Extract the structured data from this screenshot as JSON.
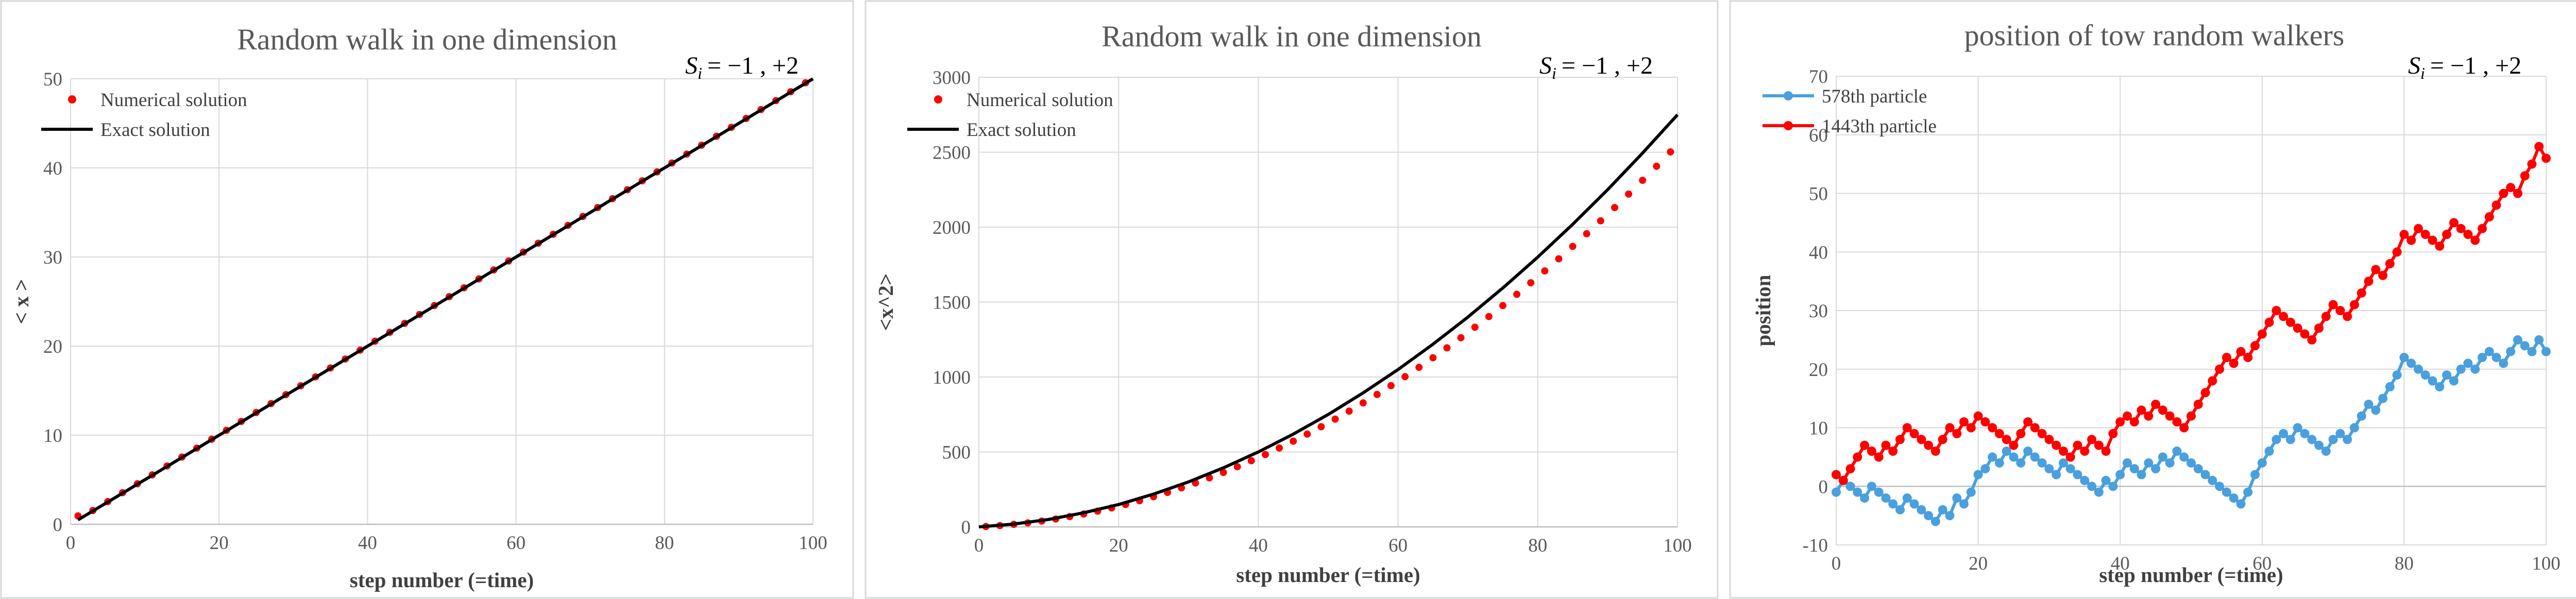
{
  "chart_data": [
    {
      "type": "scatter",
      "title": "Random walk in one dimension",
      "annotation": "Si = −1 , +2",
      "annotation_base": "S",
      "annotation_sub": "i",
      "annotation_rest": "= −1 , +2",
      "xlabel": "step number (=time)",
      "ylabel": "< x >",
      "xlim": [
        0,
        100
      ],
      "ylim": [
        0,
        50
      ],
      "xticks": [
        "0",
        "20",
        "40",
        "60",
        "80",
        "100"
      ],
      "yticks": [
        "0",
        "10",
        "20",
        "30",
        "40",
        "50"
      ],
      "grid": true,
      "legend_position": "top-left",
      "series": [
        {
          "name": "Numerical solution",
          "kind": "markers",
          "color": "#ff0000",
          "x": [
            1,
            3,
            5,
            7,
            9,
            11,
            13,
            15,
            17,
            19,
            21,
            23,
            25,
            27,
            29,
            31,
            33,
            35,
            37,
            39,
            41,
            43,
            45,
            47,
            49,
            51,
            53,
            55,
            57,
            59,
            61,
            63,
            65,
            67,
            69,
            71,
            73,
            75,
            77,
            79,
            81,
            83,
            85,
            87,
            89,
            91,
            93,
            95,
            97,
            99
          ],
          "y": [
            0.95,
            1.55,
            2.55,
            3.55,
            4.55,
            5.55,
            6.55,
            7.55,
            8.55,
            9.55,
            10.55,
            11.55,
            12.55,
            13.55,
            14.55,
            15.55,
            16.55,
            17.55,
            18.55,
            19.55,
            20.55,
            21.55,
            22.55,
            23.55,
            24.55,
            25.55,
            26.55,
            27.55,
            28.55,
            29.55,
            30.55,
            31.55,
            32.55,
            33.55,
            34.55,
            35.55,
            36.55,
            37.55,
            38.55,
            39.55,
            40.55,
            41.55,
            42.55,
            43.55,
            44.55,
            45.55,
            46.55,
            47.55,
            48.55,
            49.55
          ]
        },
        {
          "name": "Exact solution",
          "kind": "line",
          "color": "#000000",
          "x": [
            1,
            100
          ],
          "y": [
            0.5,
            50
          ]
        }
      ]
    },
    {
      "type": "scatter",
      "title": "Random walk in one dimension",
      "annotation": "Si = −1 , +2",
      "annotation_base": "S",
      "annotation_sub": "i",
      "annotation_rest": "= −1 , +2",
      "xlabel": "step number (=time)",
      "ylabel": "<x^2>",
      "xlim": [
        0,
        100
      ],
      "ylim": [
        0,
        3000
      ],
      "xticks": [
        "0",
        "20",
        "40",
        "60",
        "80",
        "100"
      ],
      "yticks": [
        "0",
        "500",
        "1000",
        "1500",
        "2000",
        "2500",
        "3000"
      ],
      "grid": true,
      "legend_position": "top-left",
      "series": [
        {
          "name": "Numerical solution",
          "kind": "markers",
          "color": "#ff0000",
          "x": [
            1,
            3,
            5,
            7,
            9,
            11,
            13,
            15,
            17,
            19,
            21,
            23,
            25,
            27,
            29,
            31,
            33,
            35,
            37,
            39,
            41,
            43,
            45,
            47,
            49,
            51,
            53,
            55,
            57,
            59,
            61,
            63,
            65,
            67,
            69,
            71,
            73,
            75,
            77,
            79,
            81,
            83,
            85,
            87,
            89,
            91,
            93,
            95,
            97,
            99
          ],
          "y": [
            2.3,
            8.6,
            16.8,
            26.9,
            38.8,
            52.6,
            68.3,
            85.8,
            105.2,
            126.4,
            149.5,
            174.5,
            201.3,
            230,
            260.5,
            292.9,
            327.2,
            363.3,
            401.3,
            441.2,
            482.9,
            526.5,
            571.9,
            619.2,
            668.4,
            719.4,
            772.3,
            827,
            883.6,
            942.1,
            1002.4,
            1064.6,
            1128.6,
            1194.5,
            1262.3,
            1331.9,
            1403.4,
            1476.8,
            1552,
            1629,
            1708,
            1788.8,
            1871.4,
            1955.9,
            2042.3,
            2130.5,
            2220.6,
            2312.5,
            2406.3,
            2502
          ]
        },
        {
          "name": "Exact solution",
          "kind": "line",
          "color": "#000000",
          "x": [
            0,
            5,
            10,
            15,
            20,
            25,
            30,
            35,
            40,
            45,
            50,
            55,
            60,
            65,
            70,
            75,
            80,
            85,
            90,
            95,
            100
          ],
          "y": [
            0,
            19,
            50,
            94,
            149,
            219,
            300,
            394,
            500,
            619,
            750,
            894,
            1050,
            1219,
            1400,
            1594,
            1800,
            2019,
            2250,
            2494,
            2750
          ]
        }
      ]
    },
    {
      "type": "line",
      "title": "position of tow random walkers",
      "annotation": "Si = −1 , +2",
      "annotation_base": "S",
      "annotation_sub": "i",
      "annotation_rest": "= −1 , +2",
      "xlabel": "step number (=time)",
      "ylabel": "position",
      "xlim": [
        0,
        100
      ],
      "ylim": [
        -10,
        70
      ],
      "xticks": [
        "0",
        "20",
        "40",
        "60",
        "80",
        "100"
      ],
      "yticks": [
        "-10",
        "0",
        "10",
        "20",
        "30",
        "40",
        "50",
        "60",
        "70"
      ],
      "grid": true,
      "legend_position": "top-left",
      "series": [
        {
          "name": "578th particle",
          "kind": "line-markers",
          "color": "#4aa0dc",
          "x": [
            0,
            1,
            2,
            3,
            4,
            5,
            6,
            7,
            8,
            9,
            10,
            11,
            12,
            13,
            14,
            15,
            16,
            17,
            18,
            19,
            20,
            21,
            22,
            23,
            24,
            25,
            26,
            27,
            28,
            29,
            30,
            31,
            32,
            33,
            34,
            35,
            36,
            37,
            38,
            39,
            40,
            41,
            42,
            43,
            44,
            45,
            46,
            47,
            48,
            49,
            50,
            51,
            52,
            53,
            54,
            55,
            56,
            57,
            58,
            59,
            60,
            61,
            62,
            63,
            64,
            65,
            66,
            67,
            68,
            69,
            70,
            71,
            72,
            73,
            74,
            75,
            76,
            77,
            78,
            79,
            80,
            81,
            82,
            83,
            84,
            85,
            86,
            87,
            88,
            89,
            90,
            91,
            92,
            93,
            94,
            95,
            96,
            97,
            98,
            99,
            100
          ],
          "y": [
            -1,
            1,
            0,
            -1,
            -2,
            0,
            -1,
            -2,
            -3,
            -4,
            -2,
            -3,
            -4,
            -5,
            -6,
            -4,
            -5,
            -2,
            -3,
            -1,
            2,
            3,
            5,
            4,
            6,
            5,
            4,
            6,
            5,
            4,
            3,
            2,
            4,
            3,
            2,
            1,
            0,
            -1,
            1,
            0,
            2,
            4,
            3,
            2,
            4,
            3,
            5,
            4,
            6,
            5,
            4,
            3,
            2,
            1,
            0,
            -1,
            -2,
            -3,
            -1,
            2,
            4,
            6,
            8,
            9,
            8,
            10,
            9,
            8,
            7,
            6,
            8,
            9,
            8,
            10,
            12,
            14,
            13,
            15,
            17,
            19,
            22,
            21,
            20,
            19,
            18,
            17,
            19,
            18,
            20,
            21,
            20,
            22,
            23,
            22,
            21,
            23,
            25,
            24,
            23,
            25,
            23
          ]
        },
        {
          "name": "1443th particle",
          "kind": "line-markers",
          "color": "#ff0000",
          "x": [
            0,
            1,
            2,
            3,
            4,
            5,
            6,
            7,
            8,
            9,
            10,
            11,
            12,
            13,
            14,
            15,
            16,
            17,
            18,
            19,
            20,
            21,
            22,
            23,
            24,
            25,
            26,
            27,
            28,
            29,
            30,
            31,
            32,
            33,
            34,
            35,
            36,
            37,
            38,
            39,
            40,
            41,
            42,
            43,
            44,
            45,
            46,
            47,
            48,
            49,
            50,
            51,
            52,
            53,
            54,
            55,
            56,
            57,
            58,
            59,
            60,
            61,
            62,
            63,
            64,
            65,
            66,
            67,
            68,
            69,
            70,
            71,
            72,
            73,
            74,
            75,
            76,
            77,
            78,
            79,
            80,
            81,
            82,
            83,
            84,
            85,
            86,
            87,
            88,
            89,
            90,
            91,
            92,
            93,
            94,
            95,
            96,
            97,
            98,
            99,
            100
          ],
          "y": [
            2,
            1,
            3,
            5,
            7,
            6,
            5,
            7,
            6,
            8,
            10,
            9,
            8,
            7,
            6,
            8,
            10,
            9,
            11,
            10,
            12,
            11,
            10,
            9,
            8,
            7,
            9,
            11,
            10,
            9,
            8,
            7,
            6,
            5,
            7,
            6,
            8,
            7,
            6,
            9,
            11,
            12,
            11,
            13,
            12,
            14,
            13,
            12,
            11,
            10,
            12,
            14,
            16,
            18,
            20,
            22,
            21,
            23,
            22,
            24,
            26,
            28,
            30,
            29,
            28,
            27,
            26,
            25,
            27,
            29,
            31,
            30,
            29,
            31,
            33,
            35,
            37,
            36,
            38,
            40,
            43,
            42,
            44,
            43,
            42,
            41,
            43,
            45,
            44,
            43,
            42,
            44,
            46,
            48,
            50,
            51,
            50,
            53,
            55,
            58,
            56
          ]
        }
      ]
    }
  ]
}
